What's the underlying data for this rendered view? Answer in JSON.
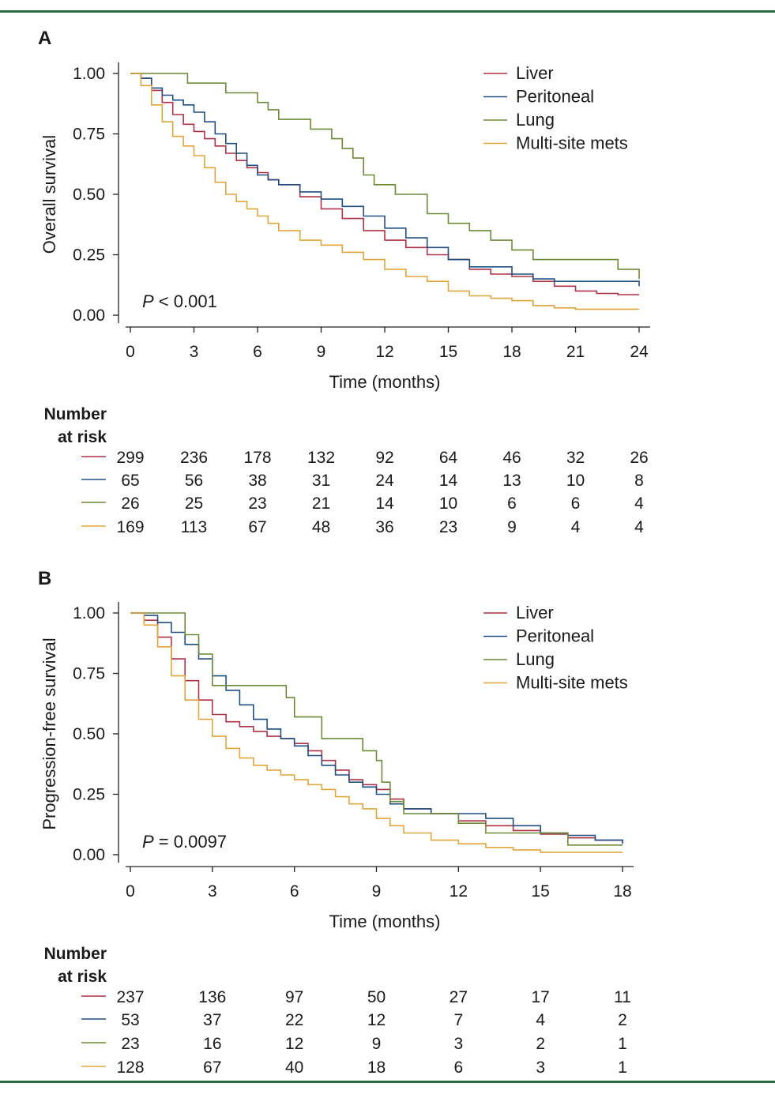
{
  "chart_data": [
    {
      "type": "line",
      "panel": "A",
      "ylabel": "Overall survival",
      "xlabel": "Time (months)",
      "ylim": [
        0,
        1
      ],
      "xlim": [
        0,
        24
      ],
      "yticks": [
        "0.00",
        "0.25",
        "0.50",
        "0.75",
        "1.00"
      ],
      "xticks": [
        "0",
        "3",
        "6",
        "9",
        "12",
        "15",
        "18",
        "21",
        "24"
      ],
      "annotation": {
        "italic": "P",
        "text": " < 0.001"
      },
      "legend_position": "top-right",
      "series": [
        {
          "name": "Liver",
          "color": "#b03045",
          "x": [
            0,
            0.5,
            1,
            1.5,
            2,
            2.5,
            3,
            3.5,
            4,
            4.5,
            5,
            5.5,
            6,
            6.5,
            7,
            8,
            9,
            10,
            11,
            12,
            13,
            14,
            15,
            16,
            17,
            18,
            19,
            20,
            21,
            22,
            23,
            24
          ],
          "y": [
            1.0,
            0.98,
            0.93,
            0.88,
            0.83,
            0.79,
            0.76,
            0.73,
            0.7,
            0.67,
            0.64,
            0.61,
            0.59,
            0.56,
            0.54,
            0.49,
            0.44,
            0.4,
            0.35,
            0.31,
            0.28,
            0.25,
            0.23,
            0.19,
            0.17,
            0.16,
            0.14,
            0.12,
            0.1,
            0.09,
            0.085,
            0.085
          ]
        },
        {
          "name": "Peritoneal",
          "color": "#1f4e85",
          "x": [
            0,
            0.5,
            1,
            1.5,
            2,
            2.5,
            3,
            3.5,
            4,
            4.5,
            5,
            5.5,
            6,
            6.5,
            7,
            8,
            9,
            10,
            11,
            12,
            13,
            14,
            15,
            16,
            17,
            18,
            19,
            20,
            21,
            22,
            23,
            24
          ],
          "y": [
            1.0,
            0.98,
            0.94,
            0.91,
            0.89,
            0.87,
            0.84,
            0.8,
            0.75,
            0.71,
            0.67,
            0.62,
            0.58,
            0.56,
            0.54,
            0.51,
            0.48,
            0.45,
            0.41,
            0.36,
            0.32,
            0.28,
            0.23,
            0.2,
            0.2,
            0.17,
            0.15,
            0.14,
            0.14,
            0.14,
            0.14,
            0.12
          ]
        },
        {
          "name": "Lung",
          "color": "#6b8a35",
          "x": [
            0,
            2.7,
            4.5,
            6,
            6.5,
            7,
            8.5,
            9.5,
            10,
            10.5,
            11,
            11.5,
            12.5,
            14,
            15,
            16,
            17,
            18,
            19,
            21,
            22,
            23,
            24
          ],
          "y": [
            1.0,
            0.96,
            0.92,
            0.88,
            0.85,
            0.81,
            0.77,
            0.73,
            0.69,
            0.65,
            0.58,
            0.54,
            0.5,
            0.42,
            0.38,
            0.35,
            0.31,
            0.27,
            0.23,
            0.23,
            0.23,
            0.19,
            0.15
          ]
        },
        {
          "name": "Multi-site mets",
          "color": "#e0a53a",
          "x": [
            0,
            0.5,
            1,
            1.5,
            2,
            2.5,
            3,
            3.5,
            4,
            4.5,
            5,
            5.5,
            6,
            6.5,
            7,
            8,
            9,
            10,
            11,
            12,
            13,
            14,
            15,
            16,
            17,
            18,
            19,
            20,
            21,
            22,
            23,
            24
          ],
          "y": [
            1.0,
            0.95,
            0.87,
            0.8,
            0.74,
            0.7,
            0.66,
            0.61,
            0.55,
            0.5,
            0.47,
            0.44,
            0.41,
            0.38,
            0.35,
            0.31,
            0.29,
            0.26,
            0.23,
            0.19,
            0.16,
            0.14,
            0.1,
            0.08,
            0.07,
            0.06,
            0.04,
            0.03,
            0.025,
            0.025,
            0.025,
            0.025
          ]
        }
      ],
      "risk_table": {
        "header": [
          "Number",
          "at risk"
        ],
        "rows": [
          {
            "color": "#b03045",
            "values": [
              "299",
              "236",
              "178",
              "132",
              "92",
              "64",
              "46",
              "32",
              "26"
            ]
          },
          {
            "color": "#1f4e85",
            "values": [
              "65",
              "56",
              "38",
              "31",
              "24",
              "14",
              "13",
              "10",
              "8"
            ]
          },
          {
            "color": "#6b8a35",
            "values": [
              "26",
              "25",
              "23",
              "21",
              "14",
              "10",
              "6",
              "6",
              "4"
            ]
          },
          {
            "color": "#e0a53a",
            "values": [
              "169",
              "113",
              "67",
              "48",
              "36",
              "23",
              "9",
              "4",
              "4"
            ]
          }
        ]
      }
    },
    {
      "type": "line",
      "panel": "B",
      "ylabel": "Progression-free survival",
      "xlabel": "Time (months)",
      "ylim": [
        0,
        1
      ],
      "xlim": [
        0,
        18
      ],
      "yticks": [
        "0.00",
        "0.25",
        "0.50",
        "0.75",
        "1.00"
      ],
      "xticks": [
        "0",
        "3",
        "6",
        "9",
        "12",
        "15",
        "18"
      ],
      "annotation": {
        "italic": "P",
        "text": " = 0.0097"
      },
      "legend_position": "top-right",
      "series": [
        {
          "name": "Liver",
          "color": "#b03045",
          "x": [
            0,
            0.5,
            1,
            1.5,
            2,
            2.5,
            3,
            3.5,
            4,
            4.5,
            5,
            5.5,
            6,
            6.5,
            7,
            7.5,
            8,
            8.5,
            9,
            9.5,
            10,
            11,
            12,
            13,
            14,
            15,
            16,
            17,
            18
          ],
          "y": [
            1.0,
            0.97,
            0.9,
            0.81,
            0.72,
            0.64,
            0.58,
            0.55,
            0.53,
            0.51,
            0.49,
            0.48,
            0.46,
            0.43,
            0.39,
            0.35,
            0.31,
            0.29,
            0.27,
            0.23,
            0.19,
            0.17,
            0.14,
            0.12,
            0.1,
            0.085,
            0.07,
            0.06,
            0.05
          ]
        },
        {
          "name": "Peritoneal",
          "color": "#1f4e85",
          "x": [
            0,
            0.5,
            1,
            1.5,
            2,
            2.5,
            3,
            3.5,
            4,
            4.5,
            5,
            5.5,
            6,
            6.5,
            7,
            7.5,
            8,
            8.5,
            9,
            9.5,
            10,
            11,
            12,
            13,
            14,
            15,
            16,
            17,
            18
          ],
          "y": [
            1.0,
            0.99,
            0.96,
            0.92,
            0.87,
            0.81,
            0.74,
            0.68,
            0.62,
            0.56,
            0.52,
            0.48,
            0.45,
            0.41,
            0.37,
            0.33,
            0.3,
            0.28,
            0.25,
            0.21,
            0.19,
            0.17,
            0.17,
            0.15,
            0.12,
            0.09,
            0.08,
            0.06,
            0.045
          ]
        },
        {
          "name": "Lung",
          "color": "#6b8a35",
          "x": [
            0,
            1.8,
            2,
            2.5,
            3,
            4,
            5,
            5.7,
            6,
            7,
            8,
            8.5,
            9,
            9.2,
            9.5,
            10,
            11,
            12,
            13,
            14,
            15,
            16,
            17,
            18
          ],
          "y": [
            1.0,
            1.0,
            0.91,
            0.83,
            0.7,
            0.7,
            0.7,
            0.65,
            0.57,
            0.48,
            0.48,
            0.43,
            0.39,
            0.3,
            0.22,
            0.17,
            0.17,
            0.13,
            0.09,
            0.09,
            0.09,
            0.04,
            0.04,
            0.04
          ]
        },
        {
          "name": "Multi-site mets",
          "color": "#e0a53a",
          "x": [
            0,
            0.5,
            1,
            1.5,
            2,
            2.5,
            3,
            3.5,
            4,
            4.5,
            5,
            5.5,
            6,
            6.5,
            7,
            7.5,
            8,
            8.5,
            9,
            9.5,
            10,
            11,
            12,
            13,
            14,
            15,
            16,
            17,
            18
          ],
          "y": [
            1.0,
            0.95,
            0.86,
            0.74,
            0.64,
            0.56,
            0.49,
            0.44,
            0.4,
            0.37,
            0.35,
            0.33,
            0.31,
            0.29,
            0.27,
            0.24,
            0.21,
            0.19,
            0.15,
            0.12,
            0.09,
            0.06,
            0.045,
            0.03,
            0.02,
            0.01,
            0.01,
            0.01,
            0.01
          ]
        }
      ],
      "risk_table": {
        "header": [
          "Number",
          "at risk"
        ],
        "rows": [
          {
            "color": "#b03045",
            "values": [
              "237",
              "136",
              "97",
              "50",
              "27",
              "17",
              "11"
            ]
          },
          {
            "color": "#1f4e85",
            "values": [
              "53",
              "37",
              "22",
              "12",
              "7",
              "4",
              "2"
            ]
          },
          {
            "color": "#6b8a35",
            "values": [
              "23",
              "16",
              "12",
              "9",
              "3",
              "2",
              "1"
            ]
          },
          {
            "color": "#e0a53a",
            "values": [
              "128",
              "67",
              "40",
              "18",
              "6",
              "3",
              "1"
            ]
          }
        ]
      }
    }
  ]
}
